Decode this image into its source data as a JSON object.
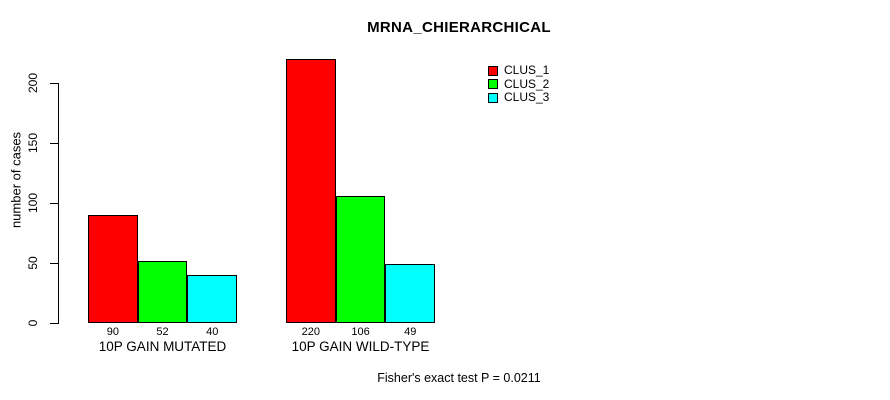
{
  "chart_data": {
    "type": "bar",
    "title": "MRNA_CHIERARCHICAL",
    "ylabel": "number of cases",
    "xlabel": "",
    "categories": [
      "10P GAIN MUTATED",
      "10P GAIN WILD-TYPE"
    ],
    "series": [
      {
        "name": "CLUS_1",
        "color": "#ff0000",
        "values": [
          90,
          220
        ]
      },
      {
        "name": "CLUS_2",
        "color": "#00ff00",
        "values": [
          52,
          106
        ]
      },
      {
        "name": "CLUS_3",
        "color": "#00ffff",
        "values": [
          40,
          49
        ]
      }
    ],
    "yticks": [
      0,
      50,
      100,
      150,
      200
    ],
    "ylim": [
      0,
      220
    ],
    "grid": false,
    "legend_position": "top-right",
    "bar_border_color": "#000000",
    "background_color": "#ffffff",
    "value_labels_shown": true,
    "footnote": "Fisher's exact test P = 0.0211"
  }
}
